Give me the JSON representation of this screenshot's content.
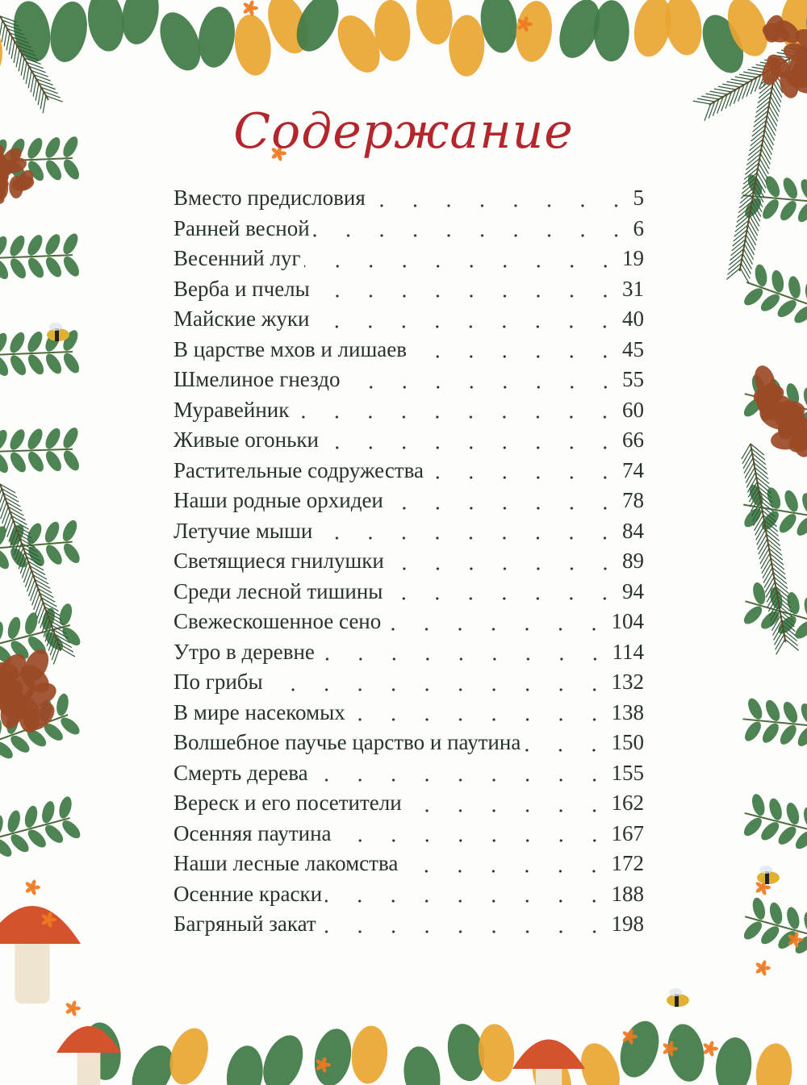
{
  "title": "Содержание",
  "colors": {
    "title": "#b3262b",
    "text": "#27332d",
    "leaf": "#3f7a45",
    "autumn": "#e9a532",
    "cone": "#9b4a26",
    "mushroom": "#d4532c"
  },
  "entries": [
    {
      "title": "Вместо предисловия",
      "page": "5"
    },
    {
      "title": "Ранней весной",
      "page": "6"
    },
    {
      "title": "Весенний луг",
      "page": "19"
    },
    {
      "title": "Верба и пчелы",
      "page": "31"
    },
    {
      "title": "Майские жуки",
      "page": "40"
    },
    {
      "title": "В царстве мхов и лишаев",
      "page": "45"
    },
    {
      "title": "Шмелиное гнездо",
      "page": "55"
    },
    {
      "title": "Муравейник",
      "page": "60"
    },
    {
      "title": "Живые огоньки",
      "page": "66"
    },
    {
      "title": "Растительные содружества",
      "page": "74"
    },
    {
      "title": "Наши родные орхидеи",
      "page": "78"
    },
    {
      "title": "Летучие мыши",
      "page": "84"
    },
    {
      "title": "Светящиеся гнилушки",
      "page": "89"
    },
    {
      "title": "Среди лесной тишины",
      "page": "94"
    },
    {
      "title": "Свежескошенное сено",
      "page": "104"
    },
    {
      "title": "Утро в деревне",
      "page": "114"
    },
    {
      "title": "По грибы",
      "page": "132"
    },
    {
      "title": "В мире насекомых",
      "page": "138"
    },
    {
      "title": "Волшебное паучье царство и паутина",
      "page": "150"
    },
    {
      "title": "Смерть дерева",
      "page": "155"
    },
    {
      "title": "Вереск и его посетители",
      "page": "162"
    },
    {
      "title": "Осенняя паутина",
      "page": "167"
    },
    {
      "title": "Наши лесные лакомства",
      "page": "172"
    },
    {
      "title": "Осенние краски",
      "page": "188"
    },
    {
      "title": "Багряный закат",
      "page": "198"
    }
  ]
}
